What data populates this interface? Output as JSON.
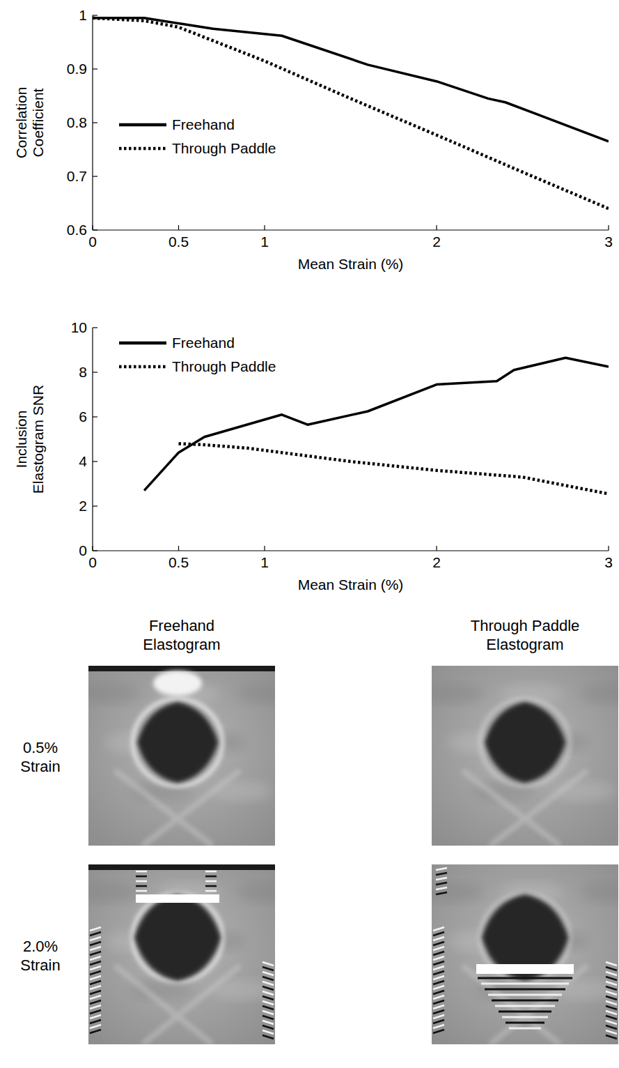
{
  "chart_data": [
    {
      "type": "line",
      "x_label": "Mean Strain (%)",
      "y_label": "Correlation Coefficient",
      "xlim": [
        0,
        3
      ],
      "xticks": [
        0,
        0.5,
        1,
        2,
        3
      ],
      "ylim": [
        0.6,
        1
      ],
      "yticks": [
        0.6,
        0.7,
        0.8,
        0.9,
        1
      ],
      "grid": false,
      "legend": "center left",
      "series": [
        {
          "name": "Freehand",
          "color": "#000000",
          "line_style": "solid",
          "x": [
            0,
            0.3,
            0.5,
            0.7,
            1.1,
            1.6,
            2,
            2.3,
            2.4,
            3
          ],
          "values": [
            0.995,
            0.995,
            0.985,
            0.975,
            0.962,
            0.908,
            0.877,
            0.845,
            0.838,
            0.765
          ]
        },
        {
          "name": "Through Paddle",
          "color": "#000000",
          "line_style": "dotted",
          "x": [
            0,
            0.3,
            0.5,
            1,
            1.5,
            2,
            2.5,
            3
          ],
          "values": [
            0.995,
            0.99,
            0.978,
            0.915,
            0.845,
            0.777,
            0.708,
            0.64
          ]
        }
      ]
    },
    {
      "type": "line",
      "x_label": "Mean Strain (%)",
      "y_label": "Inclusion Elastogram SNR",
      "xlim": [
        0,
        3
      ],
      "xticks": [
        0,
        0.5,
        1,
        2,
        3
      ],
      "ylim": [
        0,
        10
      ],
      "yticks": [
        0,
        2,
        4,
        6,
        8,
        10
      ],
      "grid": false,
      "legend": "upper left",
      "series": [
        {
          "name": "Freehand",
          "color": "#000000",
          "line_style": "solid",
          "x": [
            0.3,
            0.5,
            0.65,
            1.1,
            1.25,
            1.6,
            2,
            2.35,
            2.45,
            2.75,
            3
          ],
          "values": [
            2.7,
            4.4,
            5.1,
            6.1,
            5.65,
            6.25,
            7.45,
            7.6,
            8.1,
            8.65,
            8.25
          ]
        },
        {
          "name": "Through Paddle",
          "color": "#000000",
          "line_style": "dotted",
          "x": [
            0.5,
            0.65,
            0.9,
            1.5,
            2,
            2.5,
            3
          ],
          "values": [
            4.8,
            4.75,
            4.6,
            4.0,
            3.6,
            3.3,
            2.55
          ]
        }
      ]
    }
  ],
  "elastograms": {
    "columns": [
      "Freehand Elastogram",
      "Through Paddle Elastogram"
    ],
    "rows": [
      "0.5% Strain",
      "2.0% Strain"
    ]
  }
}
